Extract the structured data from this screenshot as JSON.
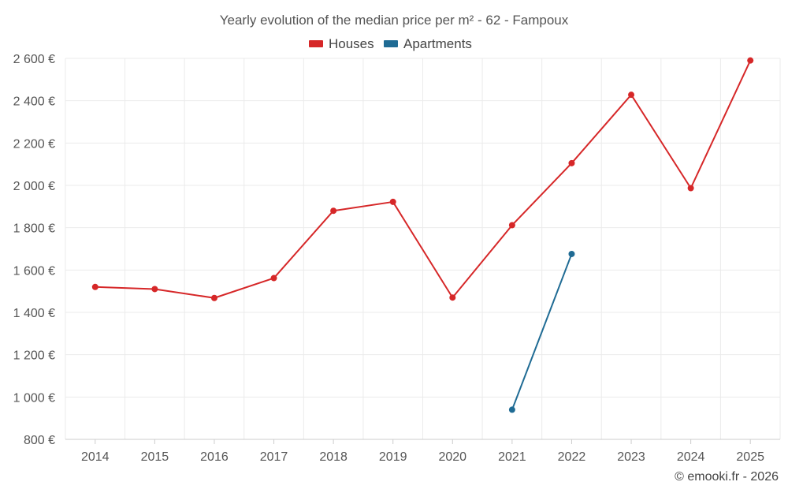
{
  "chart_data": {
    "type": "line",
    "title": "Yearly evolution of the median price per m² - 62 - Fampoux",
    "categories": [
      "2014",
      "2015",
      "2016",
      "2017",
      "2018",
      "2019",
      "2020",
      "2021",
      "2022",
      "2023",
      "2024",
      "2025"
    ],
    "ylim": [
      800,
      2600
    ],
    "yticks": [
      800,
      1000,
      1200,
      1400,
      1600,
      1800,
      2000,
      2200,
      2400,
      2600
    ],
    "ytick_labels": [
      "800 €",
      "1 000 €",
      "1 200 €",
      "1 400 €",
      "1 600 €",
      "1 800 €",
      "2 000 €",
      "2 200 €",
      "2 400 €",
      "2 600 €"
    ],
    "grid": true,
    "legend_position": "top-center",
    "series": [
      {
        "name": "Houses",
        "color": "#d62728",
        "values": [
          1520,
          1510,
          1468,
          1562,
          1880,
          1922,
          1470,
          1812,
          2105,
          2428,
          1987,
          2590
        ]
      },
      {
        "name": "Apartments",
        "color": "#1f6b94",
        "values": [
          null,
          null,
          null,
          null,
          null,
          null,
          null,
          940,
          1676,
          null,
          null,
          null
        ]
      }
    ]
  },
  "credit": "© emooki.fr - 2026"
}
